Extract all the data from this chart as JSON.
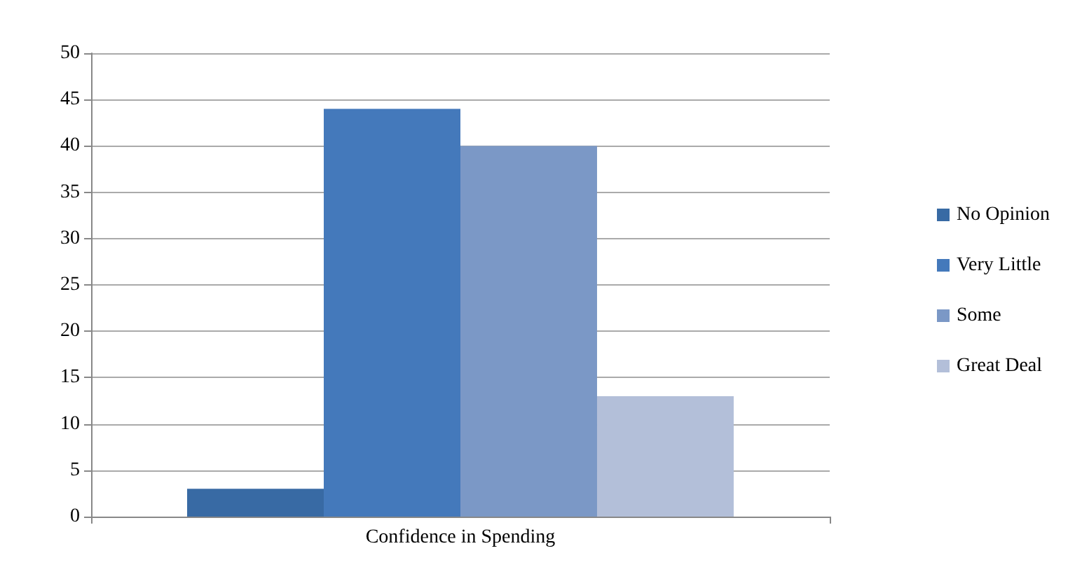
{
  "chart_data": {
    "type": "bar",
    "categories": [
      "Confidence in Spending"
    ],
    "series": [
      {
        "name": "No Opinion",
        "color": "#386aa4",
        "values": [
          3
        ]
      },
      {
        "name": "Very Little",
        "color": "#4479bb",
        "values": [
          44
        ]
      },
      {
        "name": "Some",
        "color": "#7b98c6",
        "values": [
          40
        ]
      },
      {
        "name": "Great Deal",
        "color": "#b3bfd9",
        "values": [
          13
        ]
      }
    ],
    "ylim": [
      0,
      50
    ],
    "yticks": [
      0,
      5,
      10,
      15,
      20,
      25,
      30,
      35,
      40,
      45,
      50
    ],
    "grid": "y",
    "legend": "right"
  }
}
